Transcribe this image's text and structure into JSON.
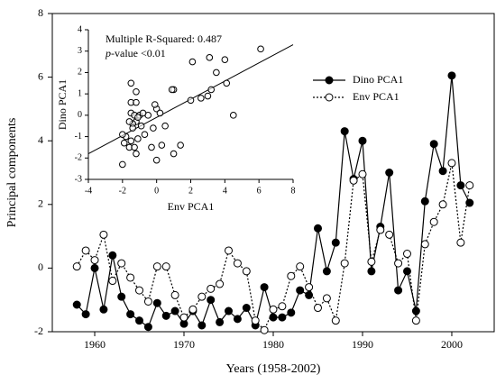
{
  "chart_data": [
    {
      "type": "line",
      "xlabel": "Years (1958-2002)",
      "ylabel": "Principal components",
      "x": [
        1958,
        1959,
        1960,
        1961,
        1962,
        1963,
        1964,
        1965,
        1966,
        1967,
        1968,
        1969,
        1970,
        1971,
        1972,
        1973,
        1974,
        1975,
        1976,
        1977,
        1978,
        1979,
        1980,
        1981,
        1982,
        1983,
        1984,
        1985,
        1986,
        1987,
        1988,
        1989,
        1990,
        1991,
        1992,
        1993,
        1994,
        1995,
        1996,
        1997,
        1998,
        1999,
        2000,
        2001,
        2002
      ],
      "series": [
        {
          "name": "Dino PCA1",
          "color": "#000000",
          "marker": "filled",
          "linestyle": "solid",
          "values": [
            -1.15,
            -1.45,
            0.0,
            -1.3,
            0.4,
            -0.9,
            -1.45,
            -1.65,
            -1.85,
            -1.1,
            -1.5,
            -1.35,
            -1.75,
            -1.35,
            -1.8,
            -1.0,
            -1.7,
            -1.35,
            -1.6,
            -1.25,
            -1.8,
            -0.6,
            -1.55,
            -1.55,
            -1.4,
            -0.7,
            -0.85,
            1.25,
            -0.1,
            0.8,
            4.3,
            2.8,
            4.0,
            -0.1,
            1.3,
            3.0,
            -0.7,
            -0.1,
            -1.35,
            2.1,
            3.9,
            3.05,
            6.05,
            2.6,
            2.05
          ]
        },
        {
          "name": "Env PCA1",
          "color": "#000000",
          "marker": "open",
          "linestyle": "dotted",
          "values": [
            0.05,
            0.55,
            0.25,
            1.05,
            -0.4,
            0.15,
            -0.3,
            -0.7,
            -1.05,
            0.05,
            0.05,
            -0.85,
            -1.55,
            -1.3,
            -0.9,
            -0.65,
            -0.5,
            0.55,
            0.15,
            -0.1,
            -1.65,
            -1.95,
            -1.3,
            -1.2,
            -0.25,
            0.05,
            -0.6,
            -1.25,
            -0.95,
            -1.65,
            0.15,
            2.75,
            2.95,
            0.2,
            1.2,
            1.05,
            0.15,
            0.45,
            -1.65,
            0.75,
            1.45,
            2.0,
            3.3,
            0.8,
            2.6
          ]
        }
      ],
      "xlim": [
        1955.25,
        2004.75
      ],
      "xticks": [
        1960,
        1970,
        1980,
        1990,
        2000
      ],
      "ylim": [
        -2,
        8
      ],
      "yticks": [
        -2,
        0,
        2,
        4,
        6,
        8
      ],
      "legend": "upper right"
    },
    {
      "type": "scatter",
      "xlabel": "Env PCA1",
      "ylabel": "Dino PCA1",
      "annotations": [
        "Multiple R-Squared: 0.487",
        [
          "p",
          "-value <0.01"
        ]
      ],
      "x": [
        6.1,
        4,
        3.1,
        2.1,
        3.5,
        4.1,
        2.6,
        2,
        3,
        3.2,
        4.5,
        1,
        -1.5,
        -1.2,
        -1.5,
        -1.2,
        0.9,
        0,
        0.2,
        -0.5,
        -1.5,
        -1.3,
        -1,
        -0.8,
        -1.2,
        -1.4,
        -1.6,
        -0.9,
        0.5,
        -0.2,
        -0.7,
        -1.1,
        -1.5,
        -1.8,
        -2,
        -1.9,
        -1.6,
        -1.3,
        -1.2,
        -0.3,
        0.3,
        1.4,
        1,
        0,
        -2,
        -0.1,
        -1.1,
        -1.4
      ],
      "values": [
        3.1,
        2.6,
        2.7,
        2.5,
        2,
        1.5,
        0.8,
        0.7,
        0.9,
        1.2,
        0,
        1.2,
        1.5,
        1.1,
        0.6,
        0.6,
        1.2,
        0.3,
        0.1,
        0,
        0.1,
        0,
        0,
        0.1,
        -0.3,
        -0.4,
        -0.3,
        -0.5,
        -0.5,
        -0.6,
        -0.9,
        -1.1,
        -1.2,
        -1.0,
        -0.9,
        -1.3,
        -1.5,
        -1.5,
        -1.8,
        -1.5,
        -1.4,
        -1.4,
        -1.8,
        -2.1,
        -2.3,
        0.5,
        -0.1,
        -0.6
      ],
      "color": "#000000",
      "fit": {
        "x": [
          -4,
          8
        ],
        "values": [
          -1.8,
          3.3
        ]
      },
      "xlim": [
        -4,
        8
      ],
      "xticks": [
        -4,
        -2,
        0,
        2,
        4,
        6,
        8
      ],
      "ylim": [
        -3,
        4
      ],
      "yticks": [
        -3,
        -2,
        -1,
        0,
        1,
        2,
        3,
        4
      ]
    }
  ]
}
